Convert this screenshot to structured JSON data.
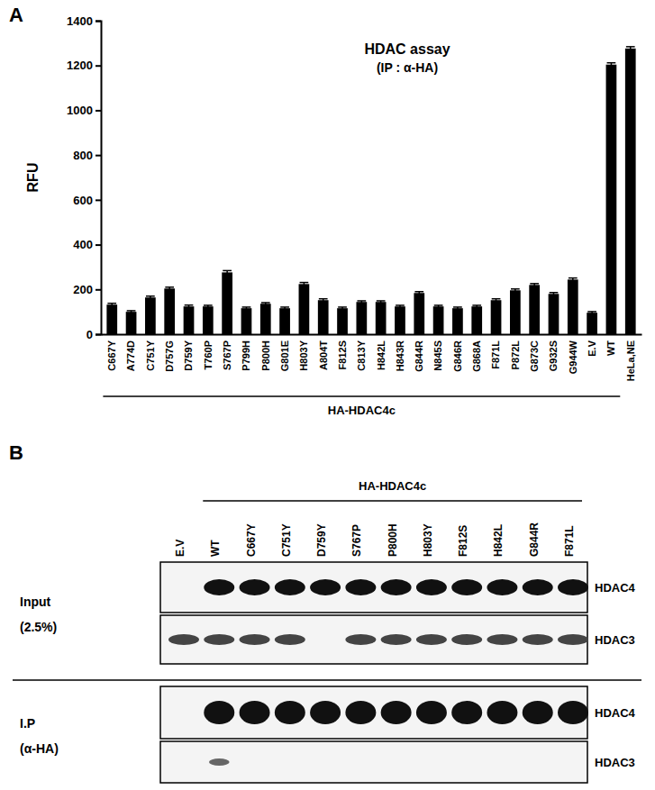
{
  "chart_data": {
    "type": "bar",
    "title": "HDAC assay",
    "subtitle": "(IP : α-HA)",
    "y_label": "RFU",
    "annotations": [
      "A",
      "HA-HDAC4c"
    ],
    "categories": [
      "C667Y",
      "A774D",
      "C751Y",
      "D757G",
      "D759Y",
      "T760P",
      "S767P",
      "P799H",
      "P800H",
      "G801E",
      "H803Y",
      "A804T",
      "F812S",
      "C813Y",
      "H842L",
      "H843R",
      "G844R",
      "N845S",
      "G846R",
      "G868A",
      "F871L",
      "P872L",
      "G873C",
      "G932S",
      "G944W",
      "E.V",
      "WT",
      "HeLa,NE"
    ],
    "values": [
      132,
      100,
      164,
      204,
      124,
      124,
      276,
      116,
      136,
      116,
      224,
      152,
      116,
      144,
      144,
      124,
      184,
      124,
      116,
      124,
      152,
      196,
      220,
      180,
      244,
      96,
      1204,
      1276
    ],
    "errors": [
      6,
      5,
      6,
      6,
      6,
      5,
      8,
      5,
      5,
      5,
      7,
      6,
      5,
      5,
      5,
      5,
      6,
      5,
      5,
      5,
      6,
      6,
      6,
      6,
      7,
      5,
      8,
      8
    ],
    "color": "#000000",
    "ylim": [
      0,
      1400
    ],
    "yticks": [
      0,
      200,
      400,
      600,
      800,
      1000,
      1200,
      1400
    ],
    "grid": false
  },
  "panel_b": {
    "label": "B",
    "group_label": "HA-HDAC4c",
    "lanes": [
      "E.V",
      "WT",
      "C667Y",
      "C751Y",
      "D759Y",
      "S767P",
      "P800H",
      "H803Y",
      "F812S",
      "H842L",
      "G844R",
      "F871L"
    ],
    "blocks": [
      {
        "label": "Input",
        "sublabel": "(2.5%)",
        "rows": [
          {
            "protein": "HDAC4",
            "present": [
              false,
              true,
              true,
              true,
              true,
              true,
              true,
              true,
              true,
              true,
              true,
              true
            ]
          },
          {
            "protein": "HDAC3",
            "present": [
              true,
              true,
              true,
              true,
              false,
              true,
              true,
              true,
              true,
              true,
              true,
              true
            ]
          }
        ]
      },
      {
        "label": "I.P",
        "sublabel": "(α-HA)",
        "rows": [
          {
            "protein": "HDAC4",
            "present": [
              false,
              true,
              true,
              true,
              true,
              true,
              true,
              true,
              true,
              true,
              true,
              true
            ]
          },
          {
            "protein": "HDAC3",
            "present": [
              false,
              true,
              false,
              false,
              false,
              false,
              false,
              false,
              false,
              false,
              false,
              false
            ]
          }
        ]
      }
    ]
  }
}
